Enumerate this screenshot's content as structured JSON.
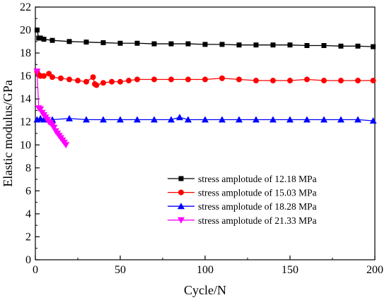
{
  "chart_data": {
    "type": "line",
    "title": "",
    "xlabel": "Cycle/N",
    "ylabel": "Elastic modulus/GPa",
    "xlim": [
      0,
      200
    ],
    "ylim": [
      0,
      22
    ],
    "x_ticks": [
      0,
      50,
      100,
      150,
      200
    ],
    "y_ticks": [
      0,
      2,
      4,
      6,
      8,
      10,
      12,
      14,
      16,
      18,
      20,
      22
    ],
    "grid": false,
    "legend_position": "lower-right",
    "series": [
      {
        "name": "stress amplotude of 12.18 MPa",
        "color": "#000000",
        "marker": "square",
        "x": [
          1,
          2,
          3,
          5,
          10,
          20,
          30,
          40,
          50,
          60,
          70,
          80,
          90,
          100,
          110,
          120,
          130,
          140,
          150,
          160,
          170,
          180,
          190,
          199
        ],
        "y": [
          20.0,
          19.3,
          19.3,
          19.2,
          19.1,
          19.0,
          18.95,
          18.9,
          18.85,
          18.85,
          18.8,
          18.8,
          18.8,
          18.75,
          18.75,
          18.7,
          18.7,
          18.7,
          18.7,
          18.65,
          18.65,
          18.6,
          18.6,
          18.55
        ]
      },
      {
        "name": "stress amplotude of 15.03 MPa",
        "color": "#ff0000",
        "marker": "circle",
        "x": [
          1,
          2,
          3,
          5,
          8,
          10,
          15,
          20,
          25,
          30,
          34,
          35,
          36,
          40,
          45,
          50,
          55,
          60,
          70,
          80,
          90,
          100,
          110,
          120,
          130,
          140,
          150,
          160,
          170,
          180,
          190,
          199
        ],
        "y": [
          16.4,
          16.1,
          16.0,
          16.0,
          16.2,
          15.9,
          15.8,
          15.7,
          15.6,
          15.5,
          15.9,
          15.3,
          15.2,
          15.4,
          15.5,
          15.5,
          15.6,
          15.7,
          15.7,
          15.7,
          15.7,
          15.7,
          15.8,
          15.7,
          15.6,
          15.6,
          15.6,
          15.7,
          15.6,
          15.6,
          15.6,
          15.6
        ]
      },
      {
        "name": "stress amplotude of 18.28 MPa",
        "color": "#0000ff",
        "marker": "triangle-up",
        "x": [
          1,
          3,
          5,
          10,
          20,
          30,
          40,
          50,
          60,
          70,
          80,
          85,
          90,
          100,
          110,
          120,
          130,
          140,
          150,
          160,
          170,
          180,
          190,
          199
        ],
        "y": [
          12.2,
          12.3,
          12.2,
          12.2,
          12.3,
          12.2,
          12.2,
          12.2,
          12.2,
          12.2,
          12.2,
          12.4,
          12.2,
          12.2,
          12.2,
          12.2,
          12.2,
          12.2,
          12.2,
          12.2,
          12.2,
          12.2,
          12.2,
          12.1
        ]
      },
      {
        "name": "stress amplotude of 21.33 MPa",
        "color": "#ff00ff",
        "marker": "triangle-down",
        "x": [
          1,
          2,
          3,
          4,
          5,
          6,
          7,
          8,
          9,
          10,
          11,
          12,
          13,
          14,
          15,
          16,
          17,
          18
        ],
        "y": [
          16.4,
          13.2,
          13.1,
          12.8,
          12.6,
          12.4,
          12.2,
          12.0,
          11.9,
          11.7,
          11.5,
          11.2,
          11.0,
          10.8,
          10.6,
          10.4,
          10.2,
          10.0
        ]
      }
    ]
  }
}
